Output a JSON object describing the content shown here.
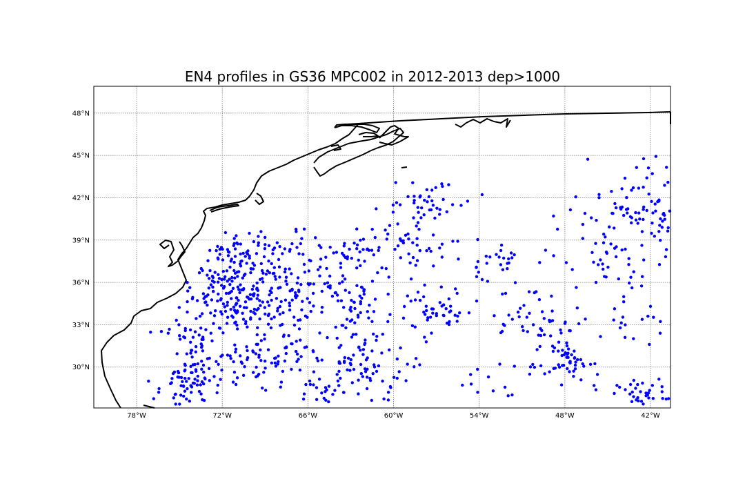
{
  "title": "EN4 profiles in GS36 MPC002 in 2012-2013 dep>1000",
  "colors": {
    "points": "#0000ff",
    "coast": "#000000",
    "grid": "#808080"
  },
  "chart_data": {
    "type": "scatter",
    "title": "EN4 profiles in GS36 MPC002 in 2012-2013 dep>1000",
    "xlim": [
      -81,
      -40.6
    ],
    "ylim": [
      27.1,
      49.9
    ],
    "grid": true,
    "x_ticks": [
      {
        "value": -78,
        "label": "78°W"
      },
      {
        "value": -72,
        "label": "72°W"
      },
      {
        "value": -66,
        "label": "66°W"
      },
      {
        "value": -60,
        "label": "60°W"
      },
      {
        "value": -54,
        "label": "54°W"
      },
      {
        "value": -48,
        "label": "48°W"
      },
      {
        "value": -42,
        "label": "42°W"
      }
    ],
    "y_ticks": [
      {
        "value": 30,
        "label": "30°N"
      },
      {
        "value": 33,
        "label": "33°N"
      },
      {
        "value": 36,
        "label": "36°N"
      },
      {
        "value": 39,
        "label": "39°N"
      },
      {
        "value": 42,
        "label": "42°N"
      },
      {
        "value": 45,
        "label": "45°N"
      },
      {
        "value": 48,
        "label": "48°N"
      }
    ],
    "clusters": [
      {
        "lon": -74.5,
        "lat": 29.0,
        "slon": 1.0,
        "slat": 0.9,
        "n": 70
      },
      {
        "lon": -74.0,
        "lat": 32.5,
        "slon": 1.0,
        "slat": 1.6,
        "n": 60
      },
      {
        "lon": -72.0,
        "lat": 36.0,
        "slon": 1.2,
        "slat": 1.5,
        "n": 60
      },
      {
        "lon": -70.0,
        "lat": 34.5,
        "slon": 1.5,
        "slat": 1.0,
        "n": 90
      },
      {
        "lon": -70.5,
        "lat": 38.0,
        "slon": 1.5,
        "slat": 0.8,
        "n": 50
      },
      {
        "lon": -67.5,
        "lat": 36.5,
        "slon": 1.8,
        "slat": 2.0,
        "n": 110
      },
      {
        "lon": -67.0,
        "lat": 31.0,
        "slon": 1.5,
        "slat": 0.8,
        "n": 40
      },
      {
        "lon": -70.5,
        "lat": 30.5,
        "slon": 1.3,
        "slat": 1.1,
        "n": 50
      },
      {
        "lon": -64.0,
        "lat": 37.5,
        "slon": 1.8,
        "slat": 1.5,
        "n": 60
      },
      {
        "lon": -62.0,
        "lat": 34.5,
        "slon": 1.5,
        "slat": 1.2,
        "n": 60
      },
      {
        "lon": -62.5,
        "lat": 30.5,
        "slon": 1.0,
        "slat": 0.9,
        "n": 40
      },
      {
        "lon": -63.5,
        "lat": 28.5,
        "slon": 2.2,
        "slat": 0.6,
        "n": 40
      },
      {
        "lon": -59.0,
        "lat": 39.0,
        "slon": 1.8,
        "slat": 1.5,
        "n": 60
      },
      {
        "lon": -57.0,
        "lat": 34.0,
        "slon": 1.2,
        "slat": 0.8,
        "n": 40
      },
      {
        "lon": -57.5,
        "lat": 42.0,
        "slon": 1.5,
        "slat": 0.6,
        "n": 30
      },
      {
        "lon": -52.5,
        "lat": 37.5,
        "slon": 1.3,
        "slat": 0.8,
        "n": 25
      },
      {
        "lon": -51.0,
        "lat": 34.0,
        "slon": 1.5,
        "slat": 0.9,
        "n": 25
      },
      {
        "lon": -49.0,
        "lat": 33.0,
        "slon": 1.0,
        "slat": 0.6,
        "n": 25
      },
      {
        "lon": -48.0,
        "lat": 30.5,
        "slon": 0.9,
        "slat": 0.8,
        "n": 50
      },
      {
        "lon": -45.5,
        "lat": 37.0,
        "slon": 1.3,
        "slat": 1.3,
        "n": 30
      },
      {
        "lon": -43.0,
        "lat": 41.5,
        "slon": 1.3,
        "slat": 1.6,
        "n": 50
      },
      {
        "lon": -41.0,
        "lat": 40.5,
        "slon": 0.8,
        "slat": 2.2,
        "n": 40
      },
      {
        "lon": -42.5,
        "lat": 28.0,
        "slon": 1.3,
        "slat": 0.5,
        "n": 40
      },
      {
        "lon": -43.0,
        "lat": 34.0,
        "slon": 1.6,
        "slat": 1.8,
        "n": 25
      },
      {
        "lon": -53.5,
        "lat": 28.8,
        "slon": 1.6,
        "slat": 0.6,
        "n": 15
      },
      {
        "lon": -47.0,
        "lat": 40.5,
        "slon": 1.2,
        "slat": 0.8,
        "n": 12
      },
      {
        "lon": -59.5,
        "lat": 31.0,
        "slon": 1.0,
        "slat": 1.2,
        "n": 15
      }
    ]
  }
}
